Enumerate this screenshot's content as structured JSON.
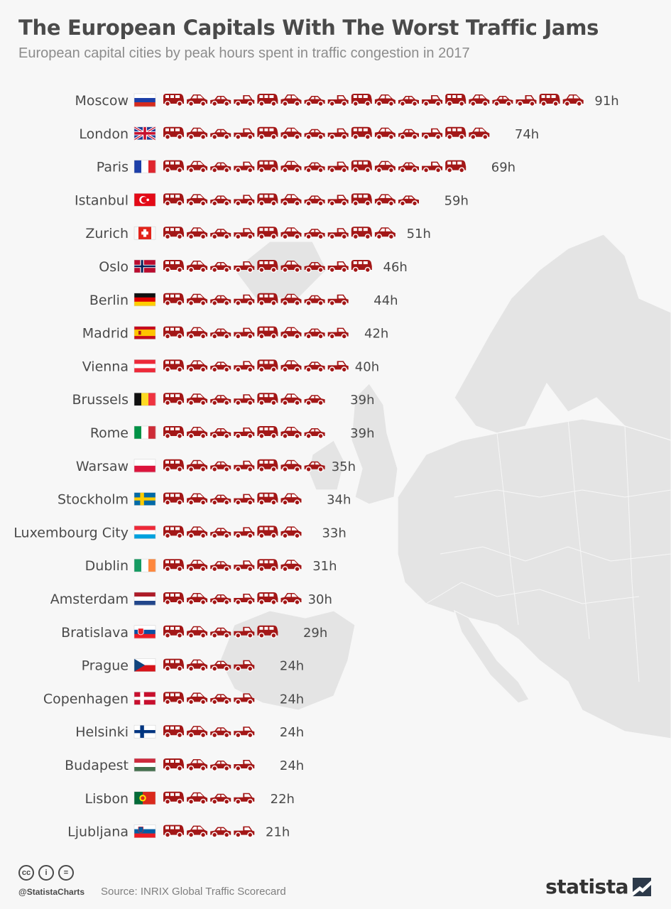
{
  "title": "The European Capitals With The Worst Traffic Jams",
  "subtitle": "European capital cities by peak hours spent in traffic congestion in 2017",
  "footer": {
    "cc_icons": [
      "cc",
      "i",
      "="
    ],
    "handle": "@StatistaCharts",
    "source": "Source: INRIX Global Traffic Scorecard",
    "brand": "statista"
  },
  "colors": {
    "car": "#a31717",
    "background": "#f7f7f7",
    "map": "#e3e3e3",
    "text": "#4a4a4a"
  },
  "chart_data": {
    "type": "bar",
    "title": "The European Capitals With The Worst Traffic Jams",
    "subtitle": "European capital cities by peak hours spent in traffic congestion in 2017",
    "unit": "h",
    "categories": [
      "Moscow",
      "London",
      "Paris",
      "Istanbul",
      "Zurich",
      "Oslo",
      "Berlin",
      "Madrid",
      "Vienna",
      "Brussels",
      "Rome",
      "Warsaw",
      "Stockholm",
      "Luxembourg City",
      "Dublin",
      "Amsterdam",
      "Bratislava",
      "Prague",
      "Copenhagen",
      "Helsinki",
      "Budapest",
      "Lisbon",
      "Ljubljana"
    ],
    "values": [
      91,
      74,
      69,
      59,
      51,
      46,
      44,
      42,
      40,
      39,
      39,
      35,
      34,
      33,
      31,
      30,
      29,
      24,
      24,
      24,
      24,
      22,
      21
    ],
    "value_labels": [
      "91h",
      "74h",
      "69h",
      "59h",
      "51h",
      "46h",
      "44h",
      "42h",
      "40h",
      "39h",
      "39h",
      "35h",
      "34h",
      "33h",
      "31h",
      "30h",
      "29h",
      "24h",
      "24h",
      "24h",
      "24h",
      "22h",
      "21h"
    ],
    "flags": [
      "russia",
      "uk",
      "france",
      "turkey",
      "switzerland",
      "norway",
      "germany",
      "spain",
      "austria",
      "belgium",
      "italy",
      "poland",
      "sweden",
      "luxembourg",
      "ireland",
      "netherlands",
      "slovakia",
      "czechia",
      "denmark",
      "finland",
      "hungary",
      "portugal",
      "slovenia"
    ],
    "icon": "car-icon",
    "hours_per_icon": 5
  }
}
